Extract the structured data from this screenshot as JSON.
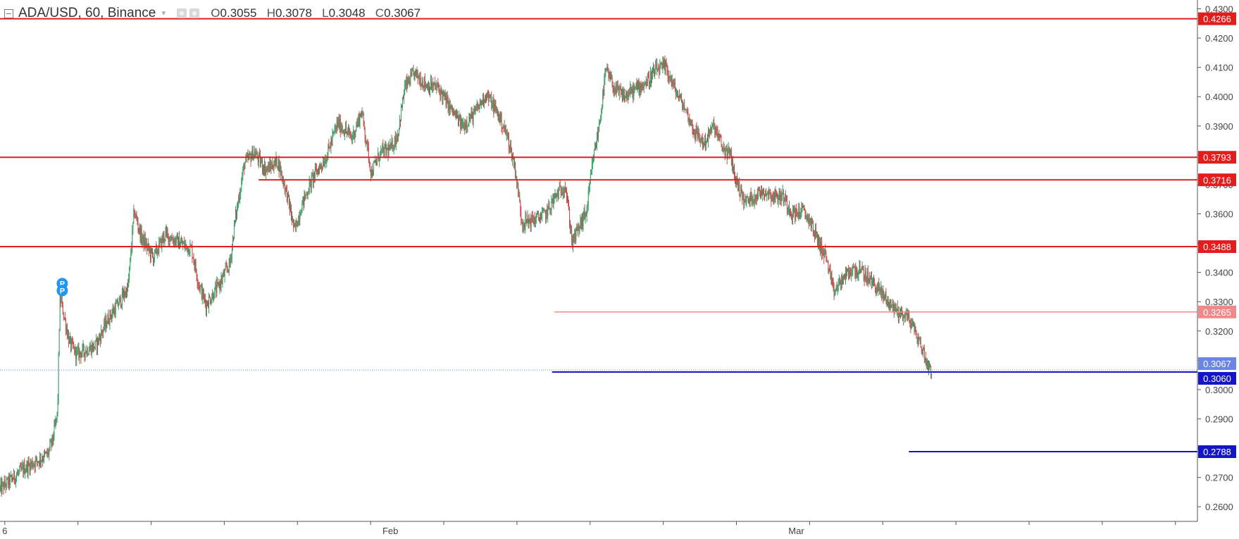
{
  "header": {
    "symbol": "ADA/USD, 60, Binance",
    "ohlc": [
      {
        "key": "O",
        "value": "0.3055"
      },
      {
        "key": "H",
        "value": "0.3078"
      },
      {
        "key": "L",
        "value": "0.3048"
      },
      {
        "key": "C",
        "value": "0.3067"
      }
    ]
  },
  "colors": {
    "up": "#3d9e6a",
    "down": "#c0504d",
    "resistance": "#e31c1c",
    "resistance_light": "#f08a8a",
    "support": "#1515c8",
    "price_label": "#6a86e0",
    "pivot_badge": "#2196f3"
  },
  "icons": [
    "collapse-icon",
    "dropdown-caret-icon",
    "settings-icon",
    "close-icon",
    "pivot-badge-icon"
  ],
  "chart_data": {
    "type": "candlestick",
    "symbol": "ADA/USD",
    "interval": "60",
    "exchange": "Binance",
    "ylim": [
      0.255,
      0.433
    ],
    "y_ticks": [
      "0.2600",
      "0.2700",
      "0.2800",
      "0.2900",
      "0.3000",
      "0.3100",
      "0.3200",
      "0.3300",
      "0.3400",
      "0.3500",
      "0.3600",
      "0.3700",
      "0.3800",
      "0.3900",
      "0.4000",
      "0.4100",
      "0.4200",
      "0.4300"
    ],
    "x_labels": [
      {
        "label": "6",
        "frac": 0.004
      },
      {
        "label": "Feb",
        "frac": 0.326
      },
      {
        "label": "Mar",
        "frac": 0.665
      }
    ],
    "x_tick_count": 17,
    "candle_count": 1290,
    "close_path": [
      [
        0.0,
        0.266
      ],
      [
        0.02,
        0.273
      ],
      [
        0.04,
        0.278
      ],
      [
        0.044,
        0.283
      ],
      [
        0.048,
        0.292
      ],
      [
        0.05,
        0.332
      ],
      [
        0.058,
        0.316
      ],
      [
        0.064,
        0.312
      ],
      [
        0.08,
        0.315
      ],
      [
        0.09,
        0.324
      ],
      [
        0.1,
        0.33
      ],
      [
        0.107,
        0.335
      ],
      [
        0.112,
        0.361
      ],
      [
        0.118,
        0.352
      ],
      [
        0.128,
        0.345
      ],
      [
        0.138,
        0.353
      ],
      [
        0.15,
        0.35
      ],
      [
        0.16,
        0.348
      ],
      [
        0.166,
        0.336
      ],
      [
        0.172,
        0.329
      ],
      [
        0.182,
        0.335
      ],
      [
        0.192,
        0.343
      ],
      [
        0.196,
        0.357
      ],
      [
        0.204,
        0.377
      ],
      [
        0.212,
        0.381
      ],
      [
        0.222,
        0.375
      ],
      [
        0.232,
        0.378
      ],
      [
        0.24,
        0.366
      ],
      [
        0.246,
        0.354
      ],
      [
        0.252,
        0.363
      ],
      [
        0.262,
        0.373
      ],
      [
        0.272,
        0.379
      ],
      [
        0.282,
        0.391
      ],
      [
        0.294,
        0.386
      ],
      [
        0.302,
        0.395
      ],
      [
        0.31,
        0.374
      ],
      [
        0.318,
        0.381
      ],
      [
        0.326,
        0.382
      ],
      [
        0.332,
        0.387
      ],
      [
        0.338,
        0.403
      ],
      [
        0.346,
        0.408
      ],
      [
        0.356,
        0.404
      ],
      [
        0.366,
        0.403
      ],
      [
        0.376,
        0.396
      ],
      [
        0.386,
        0.39
      ],
      [
        0.396,
        0.394
      ],
      [
        0.406,
        0.401
      ],
      [
        0.416,
        0.394
      ],
      [
        0.424,
        0.386
      ],
      [
        0.43,
        0.376
      ],
      [
        0.436,
        0.357
      ],
      [
        0.446,
        0.358
      ],
      [
        0.456,
        0.36
      ],
      [
        0.464,
        0.366
      ],
      [
        0.472,
        0.37
      ],
      [
        0.478,
        0.35
      ],
      [
        0.482,
        0.354
      ],
      [
        0.49,
        0.361
      ],
      [
        0.495,
        0.378
      ],
      [
        0.5,
        0.389
      ],
      [
        0.506,
        0.409
      ],
      [
        0.514,
        0.402
      ],
      [
        0.522,
        0.4
      ],
      [
        0.532,
        0.403
      ],
      [
        0.54,
        0.405
      ],
      [
        0.548,
        0.409
      ],
      [
        0.556,
        0.41
      ],
      [
        0.564,
        0.402
      ],
      [
        0.572,
        0.396
      ],
      [
        0.58,
        0.388
      ],
      [
        0.588,
        0.384
      ],
      [
        0.596,
        0.39
      ],
      [
        0.604,
        0.382
      ],
      [
        0.61,
        0.38
      ],
      [
        0.614,
        0.372
      ],
      [
        0.622,
        0.364
      ],
      [
        0.63,
        0.366
      ],
      [
        0.638,
        0.368
      ],
      [
        0.646,
        0.366
      ],
      [
        0.654,
        0.366
      ],
      [
        0.662,
        0.36
      ],
      [
        0.67,
        0.361
      ],
      [
        0.676,
        0.358
      ],
      [
        0.684,
        0.35
      ],
      [
        0.69,
        0.345
      ],
      [
        0.696,
        0.333
      ],
      [
        0.704,
        0.338
      ],
      [
        0.712,
        0.341
      ],
      [
        0.72,
        0.34
      ],
      [
        0.73,
        0.336
      ],
      [
        0.74,
        0.331
      ],
      [
        0.746,
        0.328
      ],
      [
        0.752,
        0.326
      ],
      [
        0.758,
        0.325
      ],
      [
        0.764,
        0.32
      ],
      [
        0.77,
        0.314
      ],
      [
        0.774,
        0.309
      ],
      [
        0.778,
        0.3067
      ]
    ],
    "horizontal_levels": [
      {
        "value": 0.4266,
        "label": "0.4266",
        "color": "#e31c1c",
        "x_start": 0.0,
        "width": 2
      },
      {
        "value": 0.3793,
        "label": "0.3793",
        "color": "#e31c1c",
        "x_start": 0.0,
        "width": 2
      },
      {
        "value": 0.3716,
        "label": "0.3716",
        "color": "#e31c1c",
        "x_start": 0.216,
        "width": 2
      },
      {
        "value": 0.3488,
        "label": "0.3488",
        "color": "#e31c1c",
        "x_start": 0.0,
        "width": 2
      },
      {
        "value": 0.3265,
        "label": "0.3265",
        "color": "#f08a8a",
        "x_start": 0.463,
        "width": 1.5
      },
      {
        "value": 0.306,
        "label": "0.3060",
        "color": "#1515c8",
        "x_start": 0.461,
        "width": 2
      },
      {
        "value": 0.2788,
        "label": "0.2788",
        "color": "#1515c8",
        "x_start": 0.759,
        "width": 2
      }
    ],
    "last_price": {
      "value": 0.3067,
      "label": "0.3067",
      "color": "#6a86e0"
    },
    "pivot_markers": [
      {
        "x_frac": 0.052,
        "value": 0.335,
        "labels": [
          "P",
          "P"
        ]
      }
    ]
  }
}
